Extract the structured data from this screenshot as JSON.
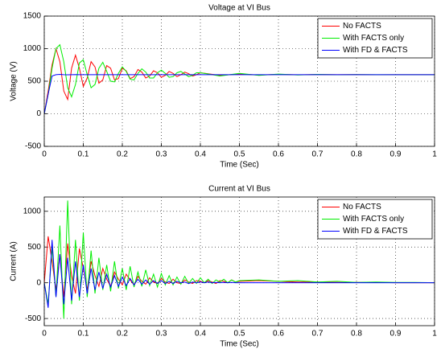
{
  "chart_data": [
    {
      "type": "line",
      "title": "Voltage at VI Bus",
      "x_label": "Time (Sec)",
      "y_label": "Voltage (V)",
      "x": [
        0,
        0.01,
        0.02,
        0.03,
        0.04,
        0.05,
        0.06,
        0.07,
        0.08,
        0.09,
        0.1,
        0.11,
        0.12,
        0.13,
        0.14,
        0.15,
        0.16,
        0.17,
        0.18,
        0.19,
        0.2,
        0.21,
        0.22,
        0.23,
        0.24,
        0.25,
        0.26,
        0.27,
        0.28,
        0.29,
        0.3,
        0.31,
        0.32,
        0.33,
        0.34,
        0.35,
        0.36,
        0.37,
        0.38,
        0.39,
        0.4,
        0.45,
        0.5,
        0.55,
        0.6,
        0.65,
        0.7,
        0.75,
        0.8,
        0.85,
        0.9,
        0.95,
        1
      ],
      "series": [
        {
          "name": "No FACTS",
          "color": "#ff0000",
          "values": [
            0,
            350,
            750,
            1000,
            800,
            350,
            220,
            700,
            900,
            700,
            420,
            550,
            800,
            720,
            470,
            520,
            740,
            700,
            520,
            540,
            700,
            660,
            540,
            570,
            680,
            640,
            550,
            580,
            660,
            630,
            560,
            590,
            650,
            620,
            570,
            600,
            640,
            615,
            580,
            600,
            630,
            590,
            610,
            595,
            605,
            598,
            603,
            600,
            602,
            599,
            601,
            600,
            600
          ]
        },
        {
          "name": "With FACTS only",
          "color": "#00ee00",
          "values": [
            0,
            300,
            700,
            1000,
            1060,
            800,
            400,
            260,
            450,
            780,
            830,
            600,
            400,
            450,
            700,
            790,
            650,
            500,
            490,
            620,
            720,
            650,
            530,
            520,
            620,
            690,
            640,
            550,
            550,
            630,
            670,
            620,
            560,
            570,
            630,
            650,
            610,
            570,
            590,
            630,
            630,
            580,
            620,
            590,
            610,
            595,
            605,
            598,
            602,
            600,
            601,
            600,
            600
          ]
        },
        {
          "name": "With FD & FACTS",
          "color": "#0000ff",
          "values": [
            0,
            300,
            580,
            600,
            605,
            600,
            598,
            600,
            602,
            600,
            600,
            600,
            600,
            600,
            600,
            600,
            600,
            600,
            600,
            600,
            600,
            600,
            600,
            600,
            600,
            600,
            600,
            600,
            600,
            600,
            600,
            600,
            600,
            600,
            600,
            600,
            600,
            600,
            600,
            600,
            600,
            600,
            600,
            600,
            600,
            600,
            600,
            600,
            600,
            600,
            600,
            600,
            600
          ]
        }
      ],
      "xlim": [
        0,
        1
      ],
      "ylim": [
        -500,
        1500
      ],
      "xticks": [
        0,
        0.1,
        0.2,
        0.3,
        0.4,
        0.5,
        0.6,
        0.7,
        0.8,
        0.9,
        1
      ],
      "yticks": [
        -500,
        0,
        500,
        1000,
        1500
      ],
      "grid": true,
      "legend": "upper right"
    },
    {
      "type": "line",
      "title": "Current at VI Bus",
      "x_label": "Time (Sec)",
      "y_label": "Current (A)",
      "x": [
        0,
        0.01,
        0.02,
        0.03,
        0.04,
        0.05,
        0.06,
        0.07,
        0.08,
        0.09,
        0.1,
        0.11,
        0.12,
        0.13,
        0.14,
        0.15,
        0.16,
        0.17,
        0.18,
        0.19,
        0.2,
        0.21,
        0.22,
        0.23,
        0.24,
        0.25,
        0.26,
        0.27,
        0.28,
        0.29,
        0.3,
        0.31,
        0.32,
        0.33,
        0.34,
        0.35,
        0.36,
        0.37,
        0.38,
        0.39,
        0.4,
        0.41,
        0.42,
        0.43,
        0.44,
        0.45,
        0.46,
        0.47,
        0.48,
        0.49,
        0.5,
        0.55,
        0.6,
        0.65,
        0.7,
        0.75,
        0.8,
        0.85,
        0.9,
        0.95,
        1
      ],
      "series": [
        {
          "name": "No FACTS",
          "color": "#ff0000",
          "values": [
            0,
            650,
            300,
            -100,
            400,
            -200,
            550,
            100,
            -150,
            480,
            200,
            -100,
            300,
            100,
            -50,
            200,
            50,
            -50,
            150,
            50,
            -30,
            120,
            40,
            -30,
            90,
            20,
            -20,
            70,
            10,
            -10,
            60,
            10,
            -10,
            50,
            0,
            -10,
            40,
            10,
            -10,
            30,
            20,
            0,
            30,
            10,
            -10,
            30,
            20,
            0,
            40,
            10,
            20,
            30,
            20,
            10,
            10,
            5,
            5,
            5,
            0,
            0,
            0
          ]
        },
        {
          "name": "With FACTS only",
          "color": "#00ee00",
          "values": [
            0,
            -300,
            500,
            -200,
            800,
            -500,
            1150,
            -300,
            600,
            -250,
            700,
            -200,
            450,
            -150,
            350,
            -100,
            250,
            -120,
            300,
            -80,
            200,
            -100,
            230,
            -60,
            150,
            -50,
            180,
            -40,
            120,
            -60,
            130,
            -30,
            100,
            -30,
            80,
            -20,
            90,
            -10,
            60,
            -10,
            70,
            0,
            50,
            -10,
            40,
            10,
            50,
            0,
            40,
            10,
            30,
            40,
            20,
            30,
            10,
            20,
            5,
            10,
            5,
            5,
            0
          ]
        },
        {
          "name": "With FD & FACTS",
          "color": "#0000ff",
          "values": [
            0,
            -350,
            600,
            -200,
            400,
            -300,
            350,
            -250,
            300,
            -200,
            250,
            -150,
            200,
            -100,
            150,
            -80,
            120,
            -60,
            100,
            -50,
            80,
            -40,
            60,
            -30,
            50,
            -20,
            40,
            -20,
            30,
            -10,
            30,
            -10,
            20,
            -10,
            20,
            0,
            10,
            -10,
            10,
            0,
            10,
            0,
            10,
            0,
            5,
            0,
            5,
            0,
            5,
            0,
            0,
            0,
            0,
            0,
            0,
            0,
            0,
            0,
            0,
            0,
            0
          ]
        }
      ],
      "xlim": [
        0,
        1
      ],
      "ylim": [
        -600,
        1200
      ],
      "xticks": [
        0,
        0.1,
        0.2,
        0.3,
        0.4,
        0.5,
        0.6,
        0.7,
        0.8,
        0.9,
        1
      ],
      "yticks": [
        -500,
        0,
        500,
        1000
      ],
      "grid": true,
      "legend": "upper right"
    }
  ]
}
